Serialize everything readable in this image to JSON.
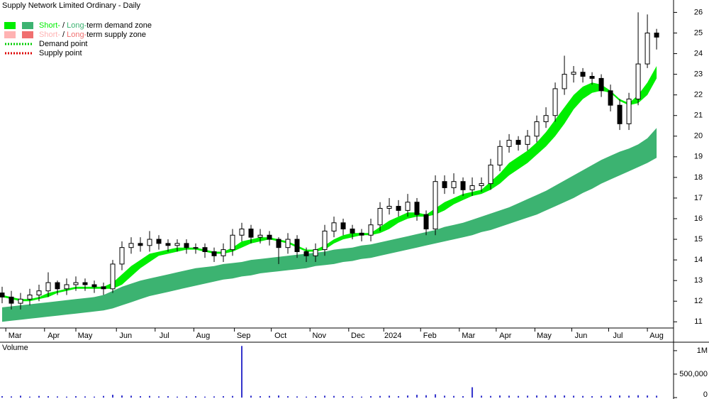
{
  "chart_data": {
    "type": "candlestick",
    "title": "Supply Network Limited Ordinary - Daily",
    "x": [
      0,
      5,
      10,
      15,
      20,
      25,
      30,
      35,
      40,
      45,
      50,
      55,
      60,
      65,
      70,
      75,
      80,
      85,
      90,
      95,
      100,
      105,
      110,
      115,
      120,
      125,
      130,
      135,
      140,
      145,
      150,
      155,
      160,
      165,
      170,
      175,
      180,
      185,
      190,
      195,
      200,
      205,
      210,
      215,
      220,
      225,
      230,
      235,
      240,
      245,
      250,
      255,
      260,
      265,
      270,
      275,
      280,
      285,
      290,
      295,
      300,
      305,
      310,
      315,
      320,
      325,
      330,
      335,
      340,
      345,
      350,
      355
    ],
    "xlim": [
      -1.15,
      364.2
    ],
    "xticks": [
      {
        "value": 2,
        "label": "Mar"
      },
      {
        "value": 23,
        "label": "Apr"
      },
      {
        "value": 40,
        "label": "May"
      },
      {
        "value": 62,
        "label": "Jun"
      },
      {
        "value": 83,
        "label": "Jul"
      },
      {
        "value": 104,
        "label": "Aug"
      },
      {
        "value": 126,
        "label": "Sep"
      },
      {
        "value": 146,
        "label": "Oct"
      },
      {
        "value": 167,
        "label": "Nov"
      },
      {
        "value": 188,
        "label": "Dec"
      },
      {
        "value": 207,
        "label": "2024"
      },
      {
        "value": 227,
        "label": "Feb"
      },
      {
        "value": 248,
        "label": "Mar"
      },
      {
        "value": 268,
        "label": "Apr"
      },
      {
        "value": 289,
        "label": "May"
      },
      {
        "value": 309,
        "label": "Jun"
      },
      {
        "value": 329,
        "label": "Jul"
      },
      {
        "value": 350,
        "label": "Aug"
      }
    ],
    "ylim": [
      10.7,
      26.6
    ],
    "yticks": [
      11,
      12,
      13,
      14,
      15,
      16,
      17,
      18,
      19,
      20,
      21,
      22,
      23,
      24,
      25,
      26
    ],
    "open": [
      12.4,
      12.2,
      11.9,
      12.1,
      12.3,
      12.5,
      12.9,
      12.6,
      12.8,
      12.9,
      12.8,
      12.7,
      12.6,
      13.8,
      14.6,
      14.8,
      14.7,
      15.0,
      14.8,
      14.7,
      14.8,
      14.6,
      14.6,
      14.4,
      14.2,
      14.5,
      15.2,
      15.5,
      15.1,
      15.2,
      15.0,
      14.6,
      15.0,
      14.4,
      14.2,
      14.5,
      15.4,
      15.8,
      15.5,
      15.3,
      15.2,
      15.7,
      16.5,
      16.6,
      16.4,
      16.8,
      16.2,
      15.5,
      17.8,
      17.5,
      17.8,
      17.4,
      17.6,
      17.7,
      18.6,
      19.5,
      19.8,
      19.6,
      20.0,
      20.7,
      21.0,
      22.3,
      23.0,
      23.1,
      22.9,
      22.8,
      22.2,
      21.5,
      20.6,
      21.8,
      23.5,
      25.0
    ],
    "high": [
      12.7,
      12.5,
      12.4,
      12.6,
      12.8,
      13.4,
      13.0,
      13.1,
      13.2,
      13.1,
      13.0,
      12.9,
      14.0,
      14.9,
      15.1,
      15.1,
      15.4,
      15.2,
      15.0,
      15.0,
      15.0,
      14.8,
      14.8,
      14.6,
      14.8,
      15.5,
      15.8,
      15.7,
      15.5,
      15.4,
      15.1,
      15.3,
      15.2,
      14.6,
      14.8,
      15.7,
      16.1,
      16.0,
      15.7,
      15.5,
      16.0,
      16.8,
      17.0,
      16.9,
      17.2,
      17.0,
      16.4,
      18.1,
      18.1,
      18.2,
      18.0,
      18.0,
      18.0,
      18.9,
      19.8,
      20.1,
      20.0,
      20.3,
      21.0,
      21.4,
      22.6,
      23.9,
      23.4,
      23.3,
      23.1,
      23.0,
      22.5,
      21.8,
      22.1,
      26.0,
      25.9,
      25.2
    ],
    "low": [
      11.9,
      11.6,
      11.6,
      11.8,
      12.0,
      12.2,
      12.3,
      12.3,
      12.5,
      12.5,
      12.4,
      12.3,
      12.4,
      13.5,
      14.3,
      14.4,
      14.4,
      14.5,
      14.4,
      14.4,
      14.3,
      14.3,
      14.1,
      13.9,
      13.9,
      14.2,
      14.9,
      14.8,
      14.8,
      14.7,
      13.8,
      14.3,
      14.1,
      13.9,
      13.9,
      14.2,
      15.1,
      15.2,
      15.0,
      14.9,
      14.9,
      15.4,
      16.2,
      16.1,
      16.1,
      15.9,
      15.2,
      15.2,
      17.2,
      17.2,
      17.1,
      17.1,
      17.3,
      17.4,
      18.3,
      19.2,
      19.3,
      19.3,
      19.7,
      20.4,
      20.7,
      22.0,
      22.6,
      22.6,
      22.5,
      21.9,
      21.2,
      20.3,
      20.3,
      21.5,
      23.3,
      24.2
    ],
    "close": [
      12.2,
      11.9,
      12.1,
      12.3,
      12.5,
      12.9,
      12.6,
      12.8,
      12.9,
      12.8,
      12.7,
      12.6,
      13.8,
      14.6,
      14.8,
      14.7,
      15.0,
      14.8,
      14.7,
      14.8,
      14.6,
      14.6,
      14.4,
      14.2,
      14.5,
      15.2,
      15.5,
      15.1,
      15.2,
      15.0,
      14.6,
      15.0,
      14.4,
      14.2,
      14.5,
      15.4,
      15.8,
      15.5,
      15.3,
      15.2,
      15.7,
      16.5,
      16.6,
      16.4,
      16.8,
      16.2,
      15.5,
      17.8,
      17.5,
      17.8,
      17.4,
      17.6,
      17.7,
      18.6,
      19.5,
      19.8,
      19.6,
      20.0,
      20.7,
      21.0,
      22.3,
      23.0,
      23.1,
      22.9,
      22.8,
      22.2,
      21.5,
      20.6,
      21.8,
      23.5,
      25.0,
      24.8
    ],
    "up_color": "#ffffff",
    "down_color": "#000000",
    "long_zone": {
      "color": "#3cb371",
      "upper": [
        11.7,
        11.75,
        11.8,
        11.85,
        11.9,
        11.95,
        12.0,
        12.05,
        12.1,
        12.15,
        12.2,
        12.3,
        12.5,
        12.7,
        12.85,
        13.0,
        13.1,
        13.2,
        13.3,
        13.4,
        13.5,
        13.6,
        13.65,
        13.7,
        13.8,
        13.85,
        13.9,
        14.0,
        14.05,
        14.1,
        14.15,
        14.2,
        14.25,
        14.3,
        14.35,
        14.4,
        14.5,
        14.55,
        14.6,
        14.7,
        14.75,
        14.85,
        14.95,
        15.05,
        15.15,
        15.25,
        15.35,
        15.45,
        15.6,
        15.7,
        15.8,
        15.95,
        16.1,
        16.25,
        16.4,
        16.55,
        16.75,
        16.95,
        17.15,
        17.35,
        17.6,
        17.85,
        18.1,
        18.35,
        18.6,
        18.85,
        19.05,
        19.25,
        19.4,
        19.6,
        19.9,
        20.4
      ],
      "lower": [
        11.0,
        11.05,
        11.1,
        11.15,
        11.2,
        11.25,
        11.3,
        11.35,
        11.4,
        11.45,
        11.5,
        11.55,
        11.65,
        11.8,
        11.95,
        12.1,
        12.25,
        12.35,
        12.45,
        12.55,
        12.65,
        12.75,
        12.85,
        12.95,
        13.05,
        13.1,
        13.2,
        13.25,
        13.35,
        13.4,
        13.45,
        13.5,
        13.55,
        13.6,
        13.7,
        13.75,
        13.8,
        13.9,
        13.95,
        14.05,
        14.1,
        14.2,
        14.3,
        14.4,
        14.5,
        14.6,
        14.7,
        14.8,
        14.9,
        15.0,
        15.1,
        15.2,
        15.35,
        15.45,
        15.6,
        15.75,
        15.9,
        16.05,
        16.2,
        16.4,
        16.6,
        16.8,
        17.0,
        17.25,
        17.45,
        17.7,
        17.9,
        18.1,
        18.3,
        18.5,
        18.7,
        18.95
      ]
    },
    "short_zone": {
      "color": "#00ee00",
      "upper": [
        12.3,
        12.2,
        12.1,
        12.1,
        12.2,
        12.4,
        12.5,
        12.6,
        12.7,
        12.7,
        12.7,
        12.7,
        12.9,
        13.3,
        13.7,
        14.0,
        14.3,
        14.4,
        14.5,
        14.6,
        14.6,
        14.6,
        14.5,
        14.4,
        14.4,
        14.6,
        14.9,
        15.0,
        15.1,
        15.1,
        15.0,
        14.9,
        14.7,
        14.5,
        14.5,
        14.7,
        15.0,
        15.2,
        15.3,
        15.3,
        15.3,
        15.6,
        15.9,
        16.1,
        16.3,
        16.3,
        16.2,
        16.5,
        16.8,
        17.0,
        17.2,
        17.3,
        17.4,
        17.8,
        18.2,
        18.7,
        19.0,
        19.3,
        19.7,
        20.2,
        20.8,
        21.4,
        22.0,
        22.4,
        22.6,
        22.5,
        22.2,
        21.8,
        21.6,
        22.0,
        22.6,
        23.4
      ],
      "lower": [
        12.2,
        12.1,
        12.0,
        12.0,
        12.1,
        12.2,
        12.4,
        12.5,
        12.6,
        12.6,
        12.6,
        12.6,
        12.6,
        12.8,
        13.2,
        13.6,
        13.9,
        14.2,
        14.3,
        14.4,
        14.5,
        14.5,
        14.4,
        14.3,
        14.3,
        14.4,
        14.6,
        14.8,
        14.9,
        15.0,
        14.9,
        14.8,
        14.6,
        14.4,
        14.4,
        14.5,
        14.8,
        15.0,
        15.1,
        15.2,
        15.2,
        15.3,
        15.5,
        15.8,
        16.0,
        16.1,
        16.1,
        16.2,
        16.4,
        16.7,
        16.9,
        17.1,
        17.2,
        17.4,
        17.7,
        18.1,
        18.4,
        18.7,
        19.1,
        19.5,
        20.0,
        20.6,
        21.3,
        21.8,
        22.1,
        22.2,
        22.1,
        21.7,
        21.5,
        21.6,
        22.0,
        22.8
      ]
    },
    "legend": [
      {
        "colors": [
          "#00ee00",
          "#3cb371"
        ],
        "short": "Short-",
        "separator": " / ",
        "long": "Long-",
        "rest": "term demand zone"
      },
      {
        "colors": [
          "#ffb3b3",
          "#f07070"
        ],
        "short": "Short-",
        "separator": " / ",
        "long": "Long-",
        "rest": "term supply zone"
      }
    ],
    "points_legend": [
      {
        "color": "#00cc00",
        "label": "Demand point"
      },
      {
        "color": "#dd0000",
        "label": "Supply point"
      }
    ],
    "volume": {
      "label": "Volume",
      "color": "#3333cc",
      "label_color": "#660099",
      "values": [
        30000,
        25000,
        40000,
        20000,
        35000,
        30000,
        25000,
        20000,
        30000,
        25000,
        20000,
        35000,
        60000,
        45000,
        40000,
        30000,
        35000,
        25000,
        30000,
        20000,
        25000,
        30000,
        20000,
        25000,
        30000,
        35000,
        1100000,
        40000,
        30000,
        35000,
        45000,
        30000,
        25000,
        20000,
        30000,
        40000,
        35000,
        30000,
        25000,
        20000,
        30000,
        35000,
        40000,
        30000,
        45000,
        60000,
        50000,
        70000,
        40000,
        35000,
        30000,
        220000,
        40000,
        35000,
        45000,
        40000,
        35000,
        40000,
        45000,
        40000,
        50000,
        45000,
        40000,
        35000,
        30000,
        35000,
        40000,
        45000,
        40000,
        50000,
        45000,
        40000
      ],
      "ylim": [
        0,
        1150000
      ],
      "yticks": [
        0,
        {
          "value": 500000,
          "label": "500,000"
        },
        {
          "value": 1000000,
          "label": "1M"
        }
      ]
    }
  }
}
